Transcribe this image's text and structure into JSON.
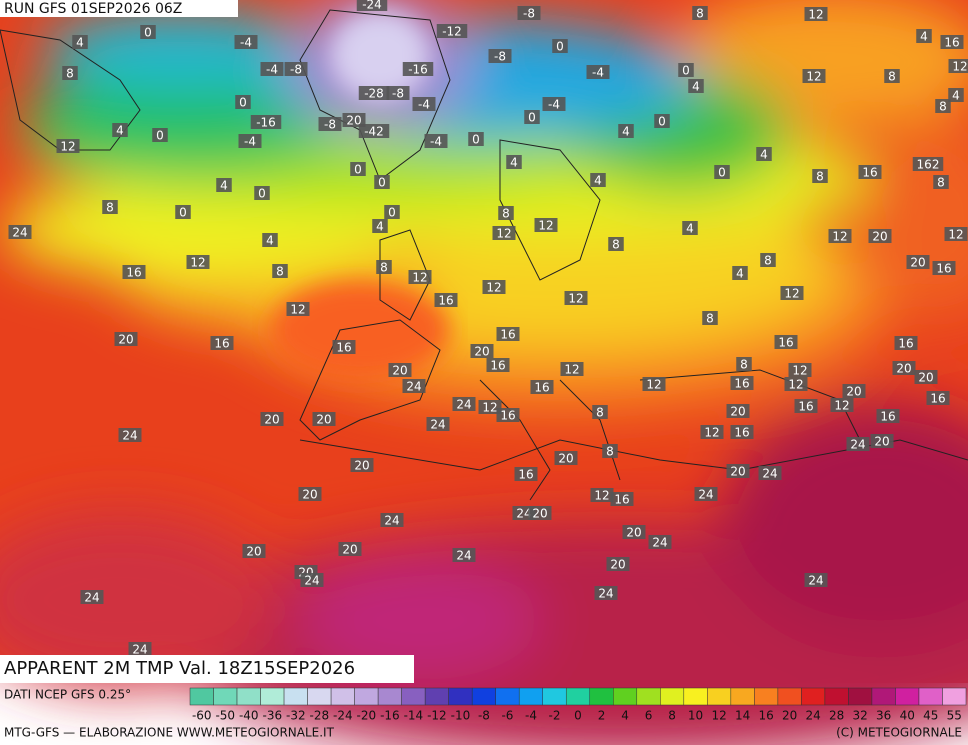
{
  "header": {
    "run": "RUN GFS 01SEP2026 06Z"
  },
  "map": {
    "title": "APPARENT 2M TMP Val. 18Z15SEP2026",
    "contour_labels": [
      "0",
      "4",
      "-4",
      "-4",
      "-8",
      "-24",
      "-12",
      "-8",
      "0",
      "-8",
      "-16",
      "-28",
      "-8",
      "-4",
      "-4",
      "-4",
      "0",
      "4",
      "8",
      "12",
      "12",
      "8",
      "4",
      "16",
      "12",
      "8",
      "4",
      "8",
      "4",
      "0",
      "-16",
      "-4",
      "-8",
      "20",
      "-42",
      "-4",
      "0",
      "0",
      "0",
      "4",
      "12",
      "0",
      "4",
      "0",
      "0",
      "0",
      "0",
      "4",
      "4",
      "0",
      "4",
      "8",
      "16",
      "162",
      "8",
      "8",
      "0",
      "24",
      "4",
      "4",
      "8",
      "12",
      "12",
      "8",
      "4",
      "12",
      "20",
      "12",
      "16",
      "12",
      "8",
      "8",
      "12",
      "16",
      "12",
      "12",
      "4",
      "8",
      "12",
      "20",
      "16",
      "12",
      "20",
      "16",
      "16",
      "16",
      "20",
      "16",
      "8",
      "16",
      "16",
      "20",
      "24",
      "12",
      "16",
      "12",
      "8",
      "16",
      "12",
      "12",
      "20",
      "20",
      "16",
      "24",
      "12",
      "16",
      "8",
      "16",
      "12",
      "20",
      "16",
      "20",
      "20",
      "24",
      "20",
      "24",
      "12",
      "16",
      "24",
      "20",
      "20",
      "8",
      "20",
      "16",
      "20",
      "24",
      "20",
      "12",
      "16",
      "24",
      "24",
      "24",
      "20",
      "20",
      "24",
      "20",
      "20",
      "24",
      "20",
      "20",
      "24",
      "24",
      "24",
      "24",
      "24"
    ]
  },
  "footer": {
    "source": "DATI NCEP GFS 0.25°",
    "credit": "MTG-GFS — ELABORAZIONE WWW.METEOGIORNALE.IT",
    "copyright": "(C) METEOGIORNALE"
  },
  "legend": {
    "labels": [
      "-60",
      "-50",
      "-40",
      "-36",
      "-32",
      "-28",
      "-24",
      "-20",
      "-16",
      "-14",
      "-12",
      "-10",
      "-8",
      "-6",
      "-4",
      "-2",
      "0",
      "2",
      "4",
      "6",
      "8",
      "10",
      "12",
      "14",
      "16",
      "20",
      "24",
      "28",
      "32",
      "36",
      "40",
      "45",
      "55"
    ],
    "colors": [
      "#50c8a0",
      "#70d8b8",
      "#90e0c8",
      "#b0ecd8",
      "#c8e0f0",
      "#d8d8f0",
      "#d0c0e8",
      "#c0a8e0",
      "#a888d0",
      "#8860c0",
      "#6040b0",
      "#3030c0",
      "#1040e0",
      "#1070f0",
      "#10a0f0",
      "#20c8e0",
      "#20d0a0",
      "#20c040",
      "#60d020",
      "#a0e020",
      "#e0f020",
      "#f8f020",
      "#f8d020",
      "#f8a820",
      "#f88020",
      "#f05020",
      "#e02020",
      "#c01030",
      "#a01040",
      "#b01878",
      "#d020a0",
      "#e060c8",
      "#f0a0e0"
    ]
  }
}
